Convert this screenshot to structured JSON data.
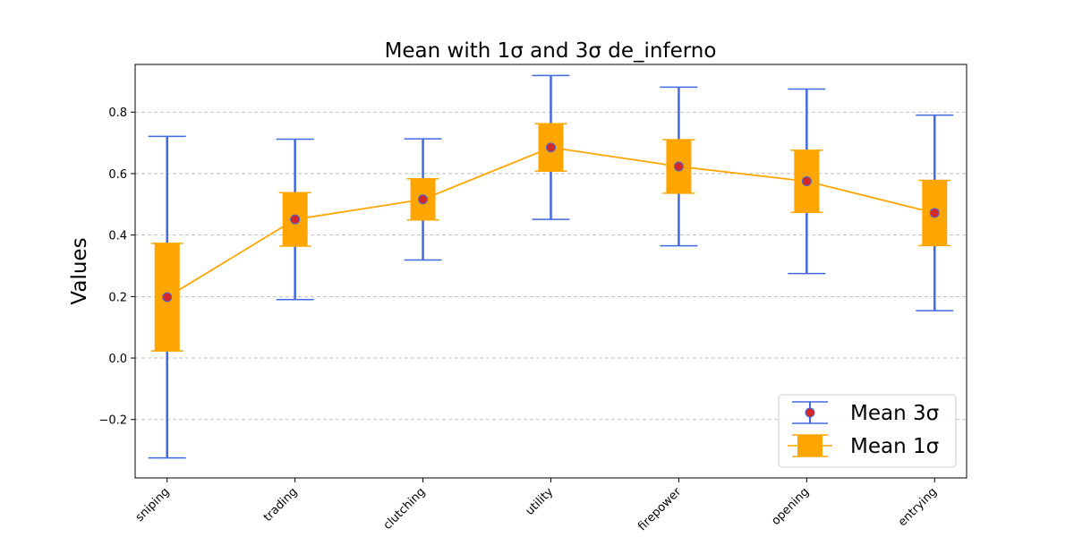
{
  "chart_data": {
    "type": "errorbar",
    "title": "Mean with 1σ and 3σ de_inferno",
    "xlabel": "",
    "ylabel": "Values",
    "categories": [
      "sniping",
      "trading",
      "clutching",
      "utility",
      "firepower",
      "opening",
      "entrying"
    ],
    "mean": [
      0.198,
      0.451,
      0.516,
      0.685,
      0.623,
      0.575,
      0.472
    ],
    "sigma1": [
      0.175,
      0.087,
      0.067,
      0.077,
      0.087,
      0.101,
      0.106
    ],
    "sigma3": [
      0.523,
      0.261,
      0.197,
      0.234,
      0.258,
      0.3,
      0.318
    ],
    "ylim": [
      -0.39,
      0.955
    ],
    "yticks": [
      -0.2,
      0.0,
      0.2,
      0.4,
      0.6,
      0.8
    ],
    "ytick_labels": [
      "−0.2",
      "0.0",
      "0.2",
      "0.4",
      "0.6",
      "0.8"
    ],
    "grid": "y-dashed",
    "legend_position": "lower-right",
    "series": [
      {
        "name": "Mean 3σ",
        "color": "#4169e1",
        "marker_color": "#d62728"
      },
      {
        "name": "Mean 1σ",
        "color": "#ffa500"
      }
    ]
  }
}
